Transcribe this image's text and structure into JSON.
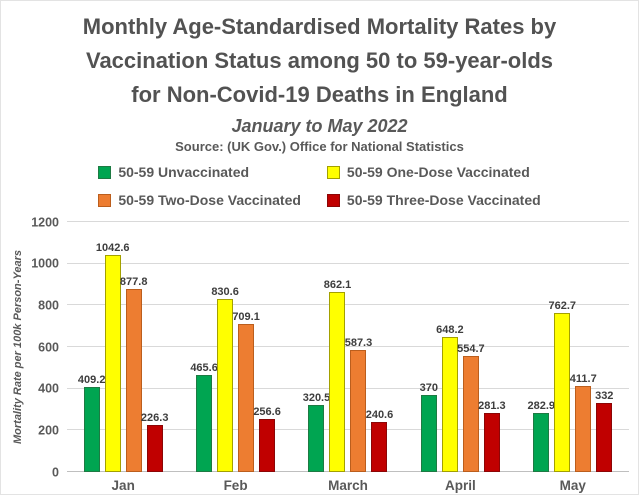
{
  "chart_data": {
    "type": "bar",
    "title_lines": [
      "Monthly Age-Standardised Mortality Rates by",
      "Vaccination Status among 50 to 59-year-olds",
      "for Non-Covid-19 Deaths in England"
    ],
    "title": "Monthly Age-Standardised Mortality Rates by Vaccination Status among 50 to 59-year-olds for Non-Covid-19 Deaths in England",
    "subtitle": "January to May 2022",
    "source_note": "Source: (UK Gov.) Office for National Statistics",
    "categories": [
      "Jan",
      "Feb",
      "March",
      "April",
      "May"
    ],
    "series": [
      {
        "name": "50-59 Unvaccinated",
        "color": "#00A551",
        "border_color": "#1e7a43",
        "values": [
          409.2,
          465.6,
          320.5,
          370,
          282.9
        ]
      },
      {
        "name": "50-59 One-Dose Vaccinated",
        "color": "#FFFF00",
        "border_color": "#a3a000",
        "values": [
          1042.6,
          830.6,
          862.1,
          648.2,
          762.7
        ]
      },
      {
        "name": "50-59 Two-Dose Vaccinated",
        "color": "#ED7D31",
        "border_color": "#bb5e1d",
        "values": [
          877.8,
          709.1,
          587.3,
          554.7,
          411.7
        ]
      },
      {
        "name": "50-59 Three-Dose Vaccinated",
        "color": "#C00000",
        "border_color": "#8c0606",
        "values": [
          226.3,
          256.6,
          240.6,
          281.3,
          332
        ]
      }
    ],
    "xlabel": "",
    "ylabel": "Mortality Rate per 100k Person-Years",
    "ylim": [
      0,
      1200
    ],
    "yticks": [
      0,
      200,
      400,
      600,
      800,
      1000,
      1200
    ],
    "grid": true,
    "legend_position": "top",
    "text_color": "#595959",
    "gridline_color": "#d9d9d9",
    "background_color": "#ffffff"
  }
}
